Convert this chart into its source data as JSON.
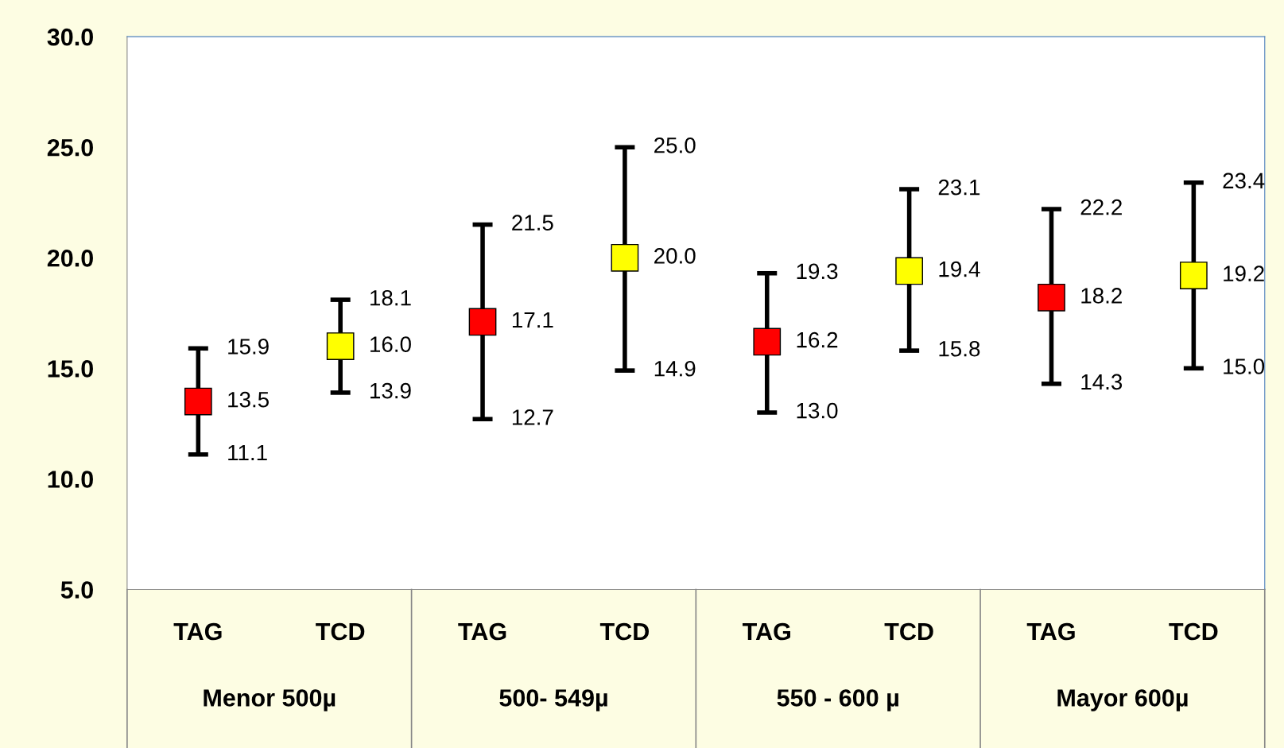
{
  "chart_data": {
    "type": "scatter",
    "categories": [
      "TAG",
      "TCD",
      "TAG",
      "TCD",
      "TAG",
      "TCD",
      "TAG",
      "TCD"
    ],
    "values": [
      13.5,
      16.0,
      17.1,
      20.0,
      16.2,
      19.4,
      18.2,
      19.2
    ],
    "errors": [
      [
        11.1,
        15.9
      ],
      [
        13.9,
        18.1
      ],
      [
        12.7,
        21.5
      ],
      [
        14.9,
        25.0
      ],
      [
        13.0,
        19.3
      ],
      [
        15.8,
        23.1
      ],
      [
        14.3,
        22.2
      ],
      [
        15.0,
        23.4
      ]
    ],
    "colors": [
      "#ff0000",
      "#ffff00",
      "#ff0000",
      "#ffff00",
      "#ff0000",
      "#ffff00",
      "#ff0000",
      "#ffff00"
    ],
    "marker": "square",
    "value_labels": [
      "13.5",
      "16.0",
      "17.1",
      "20.0",
      "16.2",
      "19.4",
      "18.2",
      "19.2"
    ],
    "annotations": [
      "Menor 500µ",
      "500- 549µ",
      "550 - 600 µ",
      "Mayor 600µ",
      "15.9",
      "11.1",
      "18.1",
      "13.9",
      "21.5",
      "12.7",
      "25.0",
      "14.9",
      "19.3",
      "13.0",
      "23.1",
      "15.8",
      "22.2",
      "14.3",
      "23.4",
      "15.0"
    ],
    "ylim": [
      5,
      30
    ],
    "yticks": [
      {
        "value": 5,
        "label": "5.0"
      },
      {
        "value": 10,
        "label": "10.0"
      },
      {
        "value": 15,
        "label": "15.0"
      },
      {
        "value": 20,
        "label": "20.0"
      },
      {
        "value": 25,
        "label": "25.0"
      },
      {
        "value": 30,
        "label": "30.0"
      }
    ],
    "grid": false
  }
}
